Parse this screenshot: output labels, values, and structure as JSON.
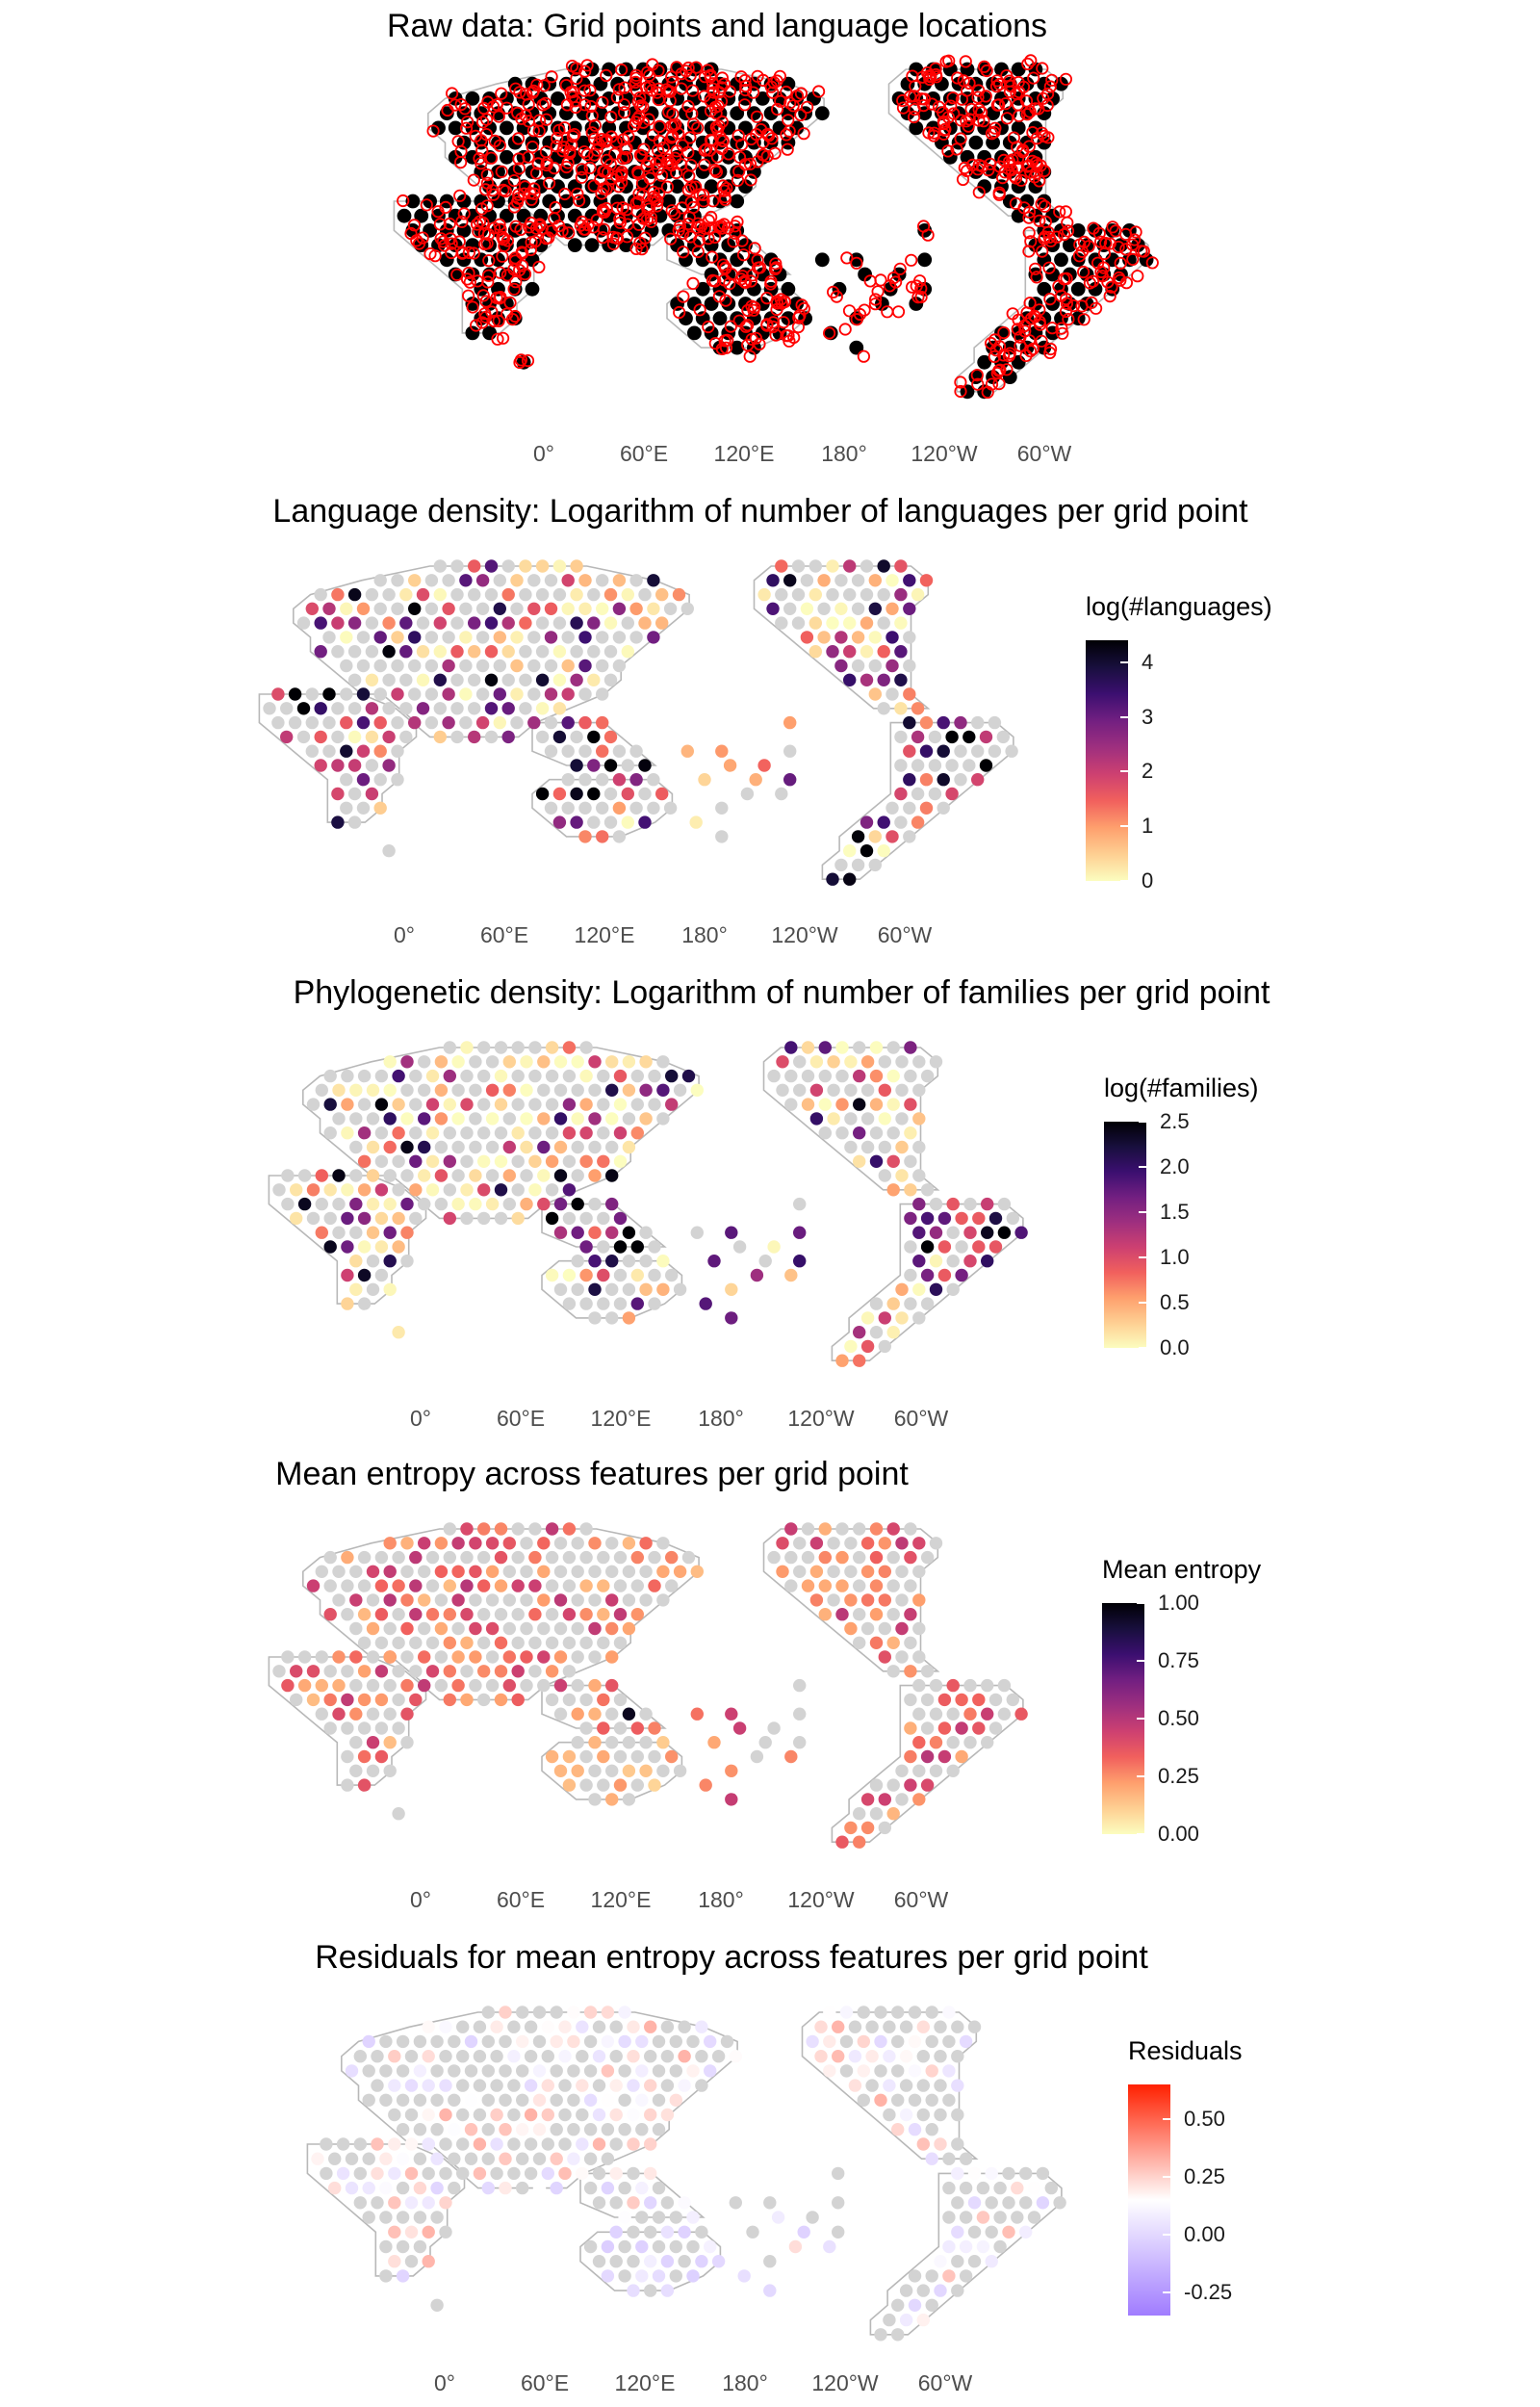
{
  "longitude_ticks": [
    "0°",
    "60°E",
    "120°E",
    "180°",
    "120°W",
    "60°W"
  ],
  "panels": [
    {
      "title": "Raw data: Grid points and language locations",
      "kind": "raw",
      "legend": null
    },
    {
      "title": "Language density: Logarithm of number of languages per grid point",
      "kind": "langdens",
      "legend": {
        "title": "log(#languages)",
        "ticks": [
          "0",
          "1",
          "2",
          "3",
          "4"
        ],
        "tick_values": [
          0,
          1,
          2,
          3,
          4
        ],
        "range": [
          0,
          4.4
        ]
      }
    },
    {
      "title": "Phylogenetic density: Logarithm of number of families per grid point",
      "kind": "famdens",
      "legend": {
        "title": "log(#families)",
        "ticks": [
          "0.0",
          "0.5",
          "1.0",
          "1.5",
          "2.0",
          "2.5"
        ],
        "tick_values": [
          0,
          0.5,
          1,
          1.5,
          2,
          2.5
        ],
        "range": [
          0,
          2.5
        ]
      }
    },
    {
      "title": "Mean entropy across features per grid point",
      "kind": "entropy",
      "legend": {
        "title": "Mean entropy",
        "ticks": [
          "0.00",
          "0.25",
          "0.50",
          "0.75",
          "1.00"
        ],
        "tick_values": [
          0,
          0.25,
          0.5,
          0.75,
          1
        ],
        "range": [
          0,
          1
        ]
      }
    },
    {
      "title": "Residuals for mean entropy across features per grid point",
      "kind": "residuals",
      "legend": {
        "title": "Residuals",
        "ticks": [
          "-0.25",
          "0.00",
          "0.25",
          "0.50"
        ],
        "tick_values": [
          -0.25,
          0,
          0.25,
          0.5
        ],
        "range": [
          -0.35,
          0.65
        ]
      }
    }
  ],
  "colors": {
    "grid_point_raw": "#000000",
    "language_location": "#ff0000",
    "no_data": "#d3d3d3",
    "coastline": "#b8b8b8",
    "magma_scale": [
      "#fcfdbf",
      "#fecf92",
      "#fe9f6d",
      "#f1605d",
      "#cd4071",
      "#9e2f7f",
      "#721f81",
      "#3b0f70",
      "#180f3d",
      "#000004"
    ],
    "residual_scale": [
      "#a07cff",
      "#ffffff",
      "#ff2000"
    ]
  }
}
